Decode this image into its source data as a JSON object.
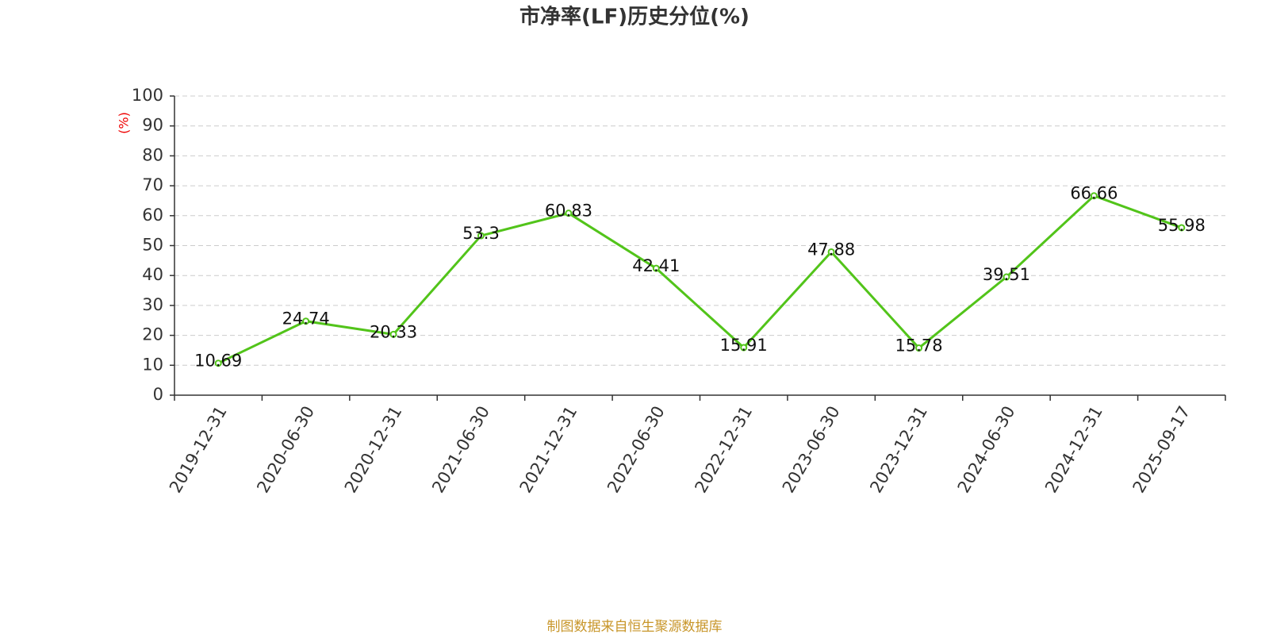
{
  "chart_data": {
    "type": "line",
    "title": "市净率(LF)历史分位(%)",
    "y_label": "(%)",
    "source": "制图数据来自恒生聚源数据库",
    "categories": [
      "2019-12-31",
      "2020-06-30",
      "2020-12-31",
      "2021-06-30",
      "2021-12-31",
      "2022-06-30",
      "2022-12-31",
      "2023-06-30",
      "2023-12-31",
      "2024-06-30",
      "2024-12-31",
      "2025-09-17"
    ],
    "series": [
      {
        "name": "市净率(LF)历史分位",
        "color": "#52c41a",
        "values": [
          10.69,
          24.74,
          20.33,
          53.3,
          60.83,
          42.41,
          15.91,
          47.88,
          15.78,
          39.51,
          66.66,
          55.98
        ]
      }
    ],
    "ylim": [
      0,
      100
    ],
    "yticks": [
      0,
      10,
      20,
      30,
      40,
      50,
      60,
      70,
      80,
      90,
      100
    ],
    "grid": true
  }
}
